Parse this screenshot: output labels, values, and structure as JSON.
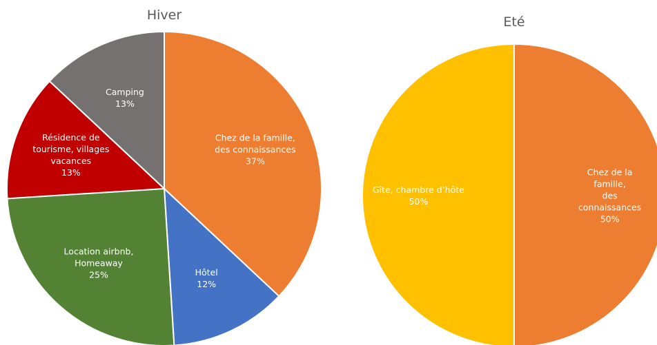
{
  "chart_data": [
    {
      "type": "pie",
      "title": "Hiver",
      "categories": [
        "Chez de la famille,\ndes connaissances",
        "Hôtel",
        "Location airbnb,\nHomeaway",
        "Résidence de\ntourisme, villages\nvacances",
        "Camping"
      ],
      "values": [
        37,
        12,
        25,
        13,
        13
      ],
      "value_labels": [
        "37%",
        "12%",
        "25%",
        "13%",
        "13%"
      ],
      "colors": [
        "#ED7D31",
        "#4472C4",
        "#548235",
        "#C00000",
        "#767171"
      ]
    },
    {
      "type": "pie",
      "title": "Eté",
      "categories": [
        "Chez de la famille,\ndes connaissances",
        "Gîte, chambre d’hôte"
      ],
      "values": [
        50,
        50
      ],
      "value_labels": [
        "50%",
        "50%"
      ],
      "colors": [
        "#ED7D31",
        "#FFC000"
      ]
    }
  ]
}
